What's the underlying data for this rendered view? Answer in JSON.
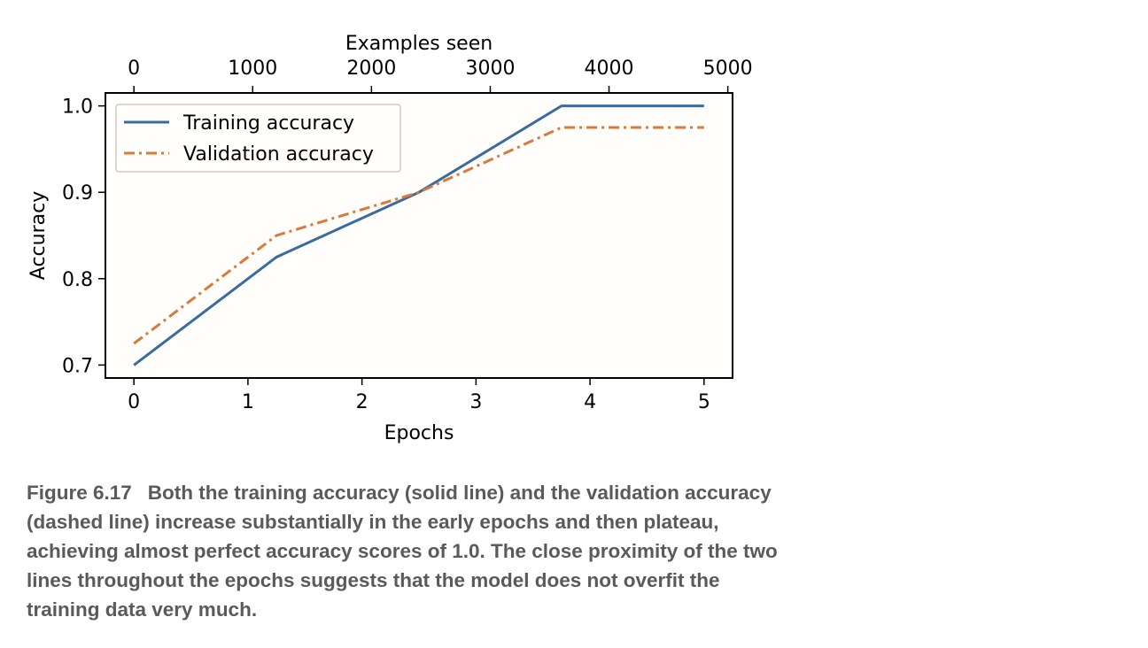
{
  "chart_data": {
    "type": "line",
    "xlabel": "Epochs",
    "x2label": "Examples seen",
    "ylabel": "Accuracy",
    "xlim": [
      -0.25,
      5.25
    ],
    "ylim": [
      0.685,
      1.015
    ],
    "x_ticks": [
      0,
      1,
      2,
      3,
      4,
      5
    ],
    "x2_ticks": [
      0,
      1000,
      2000,
      3000,
      4000,
      5000
    ],
    "x2_per_epoch": 960,
    "y_ticks": [
      "0.7",
      "0.8",
      "0.9",
      "1.0"
    ],
    "grid": false,
    "legend_position": "top-left",
    "series": [
      {
        "name": "Training accuracy",
        "style": "solid",
        "color": "#3b6aa0",
        "x": [
          0,
          1.25,
          2.5,
          3.75,
          5
        ],
        "y": [
          0.7,
          0.825,
          0.9,
          1.0,
          1.0
        ]
      },
      {
        "name": "Validation accuracy",
        "style": "dashdot",
        "color": "#d9793b",
        "x": [
          0,
          1.25,
          2.5,
          3.75,
          5
        ],
        "y": [
          0.725,
          0.85,
          0.9,
          0.975,
          0.975
        ]
      }
    ]
  },
  "caption": {
    "label": "Figure 6.17",
    "text": "Both the training accuracy (solid line) and the validation accuracy (dashed line) increase substantially in the early epochs and then plateau, achieving almost perfect accuracy scores of 1.0. The close proximity of the two lines throughout the epochs suggests that the model does not overfit the training data very much."
  }
}
